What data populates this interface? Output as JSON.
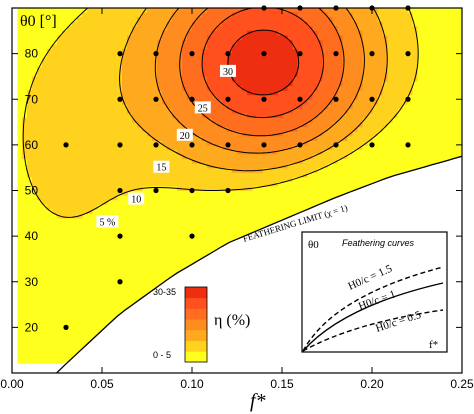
{
  "chart_data": {
    "type": "contour",
    "xlabel": "f*",
    "ylabel": "θ0 [°]",
    "xlim": [
      0.0,
      0.25
    ],
    "ylim": [
      10,
      90
    ],
    "x_ticks": [
      "0.00",
      "0.05",
      "0.10",
      "0.15",
      "0.20",
      "0.25"
    ],
    "y_ticks": [
      "20",
      "30",
      "40",
      "50",
      "60",
      "70",
      "80"
    ],
    "grid": false,
    "colorbar": {
      "label": "η (%)",
      "levels": [
        "0-5",
        "5-10",
        "10-15",
        "15-20",
        "20-25",
        "25-30",
        "30-35"
      ],
      "tick_top": "30-35",
      "tick_bottom": "0 - 5",
      "colors": [
        "#ffff1e",
        "#ffd21e",
        "#ffaa1e",
        "#ff8c1e",
        "#ff6e1e",
        "#ff501e",
        "#ee2e10"
      ]
    },
    "contour_labels": [
      "5 %",
      "10",
      "15",
      "20",
      "25",
      "30"
    ],
    "contour_levels": [
      5,
      10,
      15,
      20,
      25,
      30
    ],
    "peak": {
      "x": 0.14,
      "y": 78,
      "value": 33
    },
    "sample_points": [
      {
        "x": 0.14,
        "y": 90
      },
      {
        "x": 0.16,
        "y": 90
      },
      {
        "x": 0.18,
        "y": 90
      },
      {
        "x": 0.2,
        "y": 90
      },
      {
        "x": 0.22,
        "y": 90
      },
      {
        "x": 0.06,
        "y": 80
      },
      {
        "x": 0.08,
        "y": 80
      },
      {
        "x": 0.1,
        "y": 80
      },
      {
        "x": 0.12,
        "y": 80
      },
      {
        "x": 0.14,
        "y": 80
      },
      {
        "x": 0.16,
        "y": 80
      },
      {
        "x": 0.18,
        "y": 80
      },
      {
        "x": 0.2,
        "y": 80
      },
      {
        "x": 0.22,
        "y": 80
      },
      {
        "x": 0.06,
        "y": 70
      },
      {
        "x": 0.08,
        "y": 70
      },
      {
        "x": 0.1,
        "y": 70
      },
      {
        "x": 0.12,
        "y": 70
      },
      {
        "x": 0.14,
        "y": 70
      },
      {
        "x": 0.16,
        "y": 70
      },
      {
        "x": 0.18,
        "y": 70
      },
      {
        "x": 0.2,
        "y": 70
      },
      {
        "x": 0.22,
        "y": 70
      },
      {
        "x": 0.03,
        "y": 60
      },
      {
        "x": 0.06,
        "y": 60
      },
      {
        "x": 0.08,
        "y": 60
      },
      {
        "x": 0.1,
        "y": 60
      },
      {
        "x": 0.12,
        "y": 60
      },
      {
        "x": 0.14,
        "y": 60
      },
      {
        "x": 0.16,
        "y": 60
      },
      {
        "x": 0.18,
        "y": 60
      },
      {
        "x": 0.2,
        "y": 60
      },
      {
        "x": 0.22,
        "y": 60
      },
      {
        "x": 0.06,
        "y": 50
      },
      {
        "x": 0.08,
        "y": 50
      },
      {
        "x": 0.1,
        "y": 50
      },
      {
        "x": 0.12,
        "y": 50
      },
      {
        "x": 0.06,
        "y": 40
      },
      {
        "x": 0.1,
        "y": 40
      },
      {
        "x": 0.06,
        "y": 30
      },
      {
        "x": 0.03,
        "y": 20
      }
    ],
    "feathering_limit": {
      "label": "FEATHERING LIMIT  (χ = 1)",
      "x": [
        0.0,
        0.03,
        0.06,
        0.09,
        0.12,
        0.15,
        0.18,
        0.21,
        0.25
      ],
      "y": [
        0.5,
        12,
        23,
        31.5,
        38.5,
        43.5,
        48.5,
        53,
        57.5
      ]
    },
    "inset": {
      "title": "Feathering curves",
      "ylabel": "θ0",
      "xlabel": "f*",
      "series": [
        {
          "name": "H0/c = 1.5",
          "style": "dashed"
        },
        {
          "name": "H0/c = 1",
          "style": "solid"
        },
        {
          "name": "H0/c = 0.5",
          "style": "dashed"
        }
      ]
    }
  }
}
